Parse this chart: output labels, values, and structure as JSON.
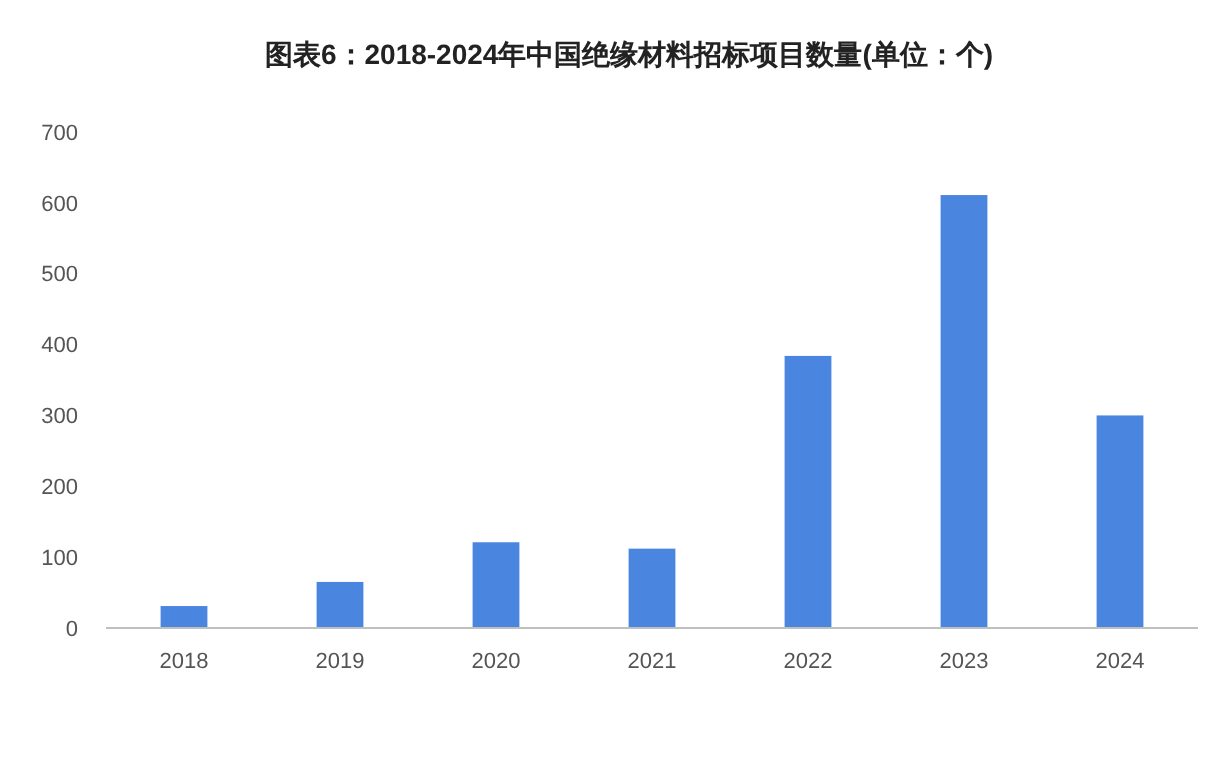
{
  "chart_data": {
    "type": "bar",
    "title": "图表6：2018-2024年中国绝缘材料招标项目数量(单位：个)",
    "categories": [
      "2018",
      "2019",
      "2020",
      "2021",
      "2022",
      "2023",
      "2024"
    ],
    "values": [
      31,
      65,
      121,
      112,
      384,
      611,
      300
    ],
    "color": "#4a86e0",
    "ylim": [
      0,
      700
    ],
    "yticks": [
      0,
      100,
      200,
      300,
      400,
      500,
      600,
      700
    ],
    "grid": false
  }
}
